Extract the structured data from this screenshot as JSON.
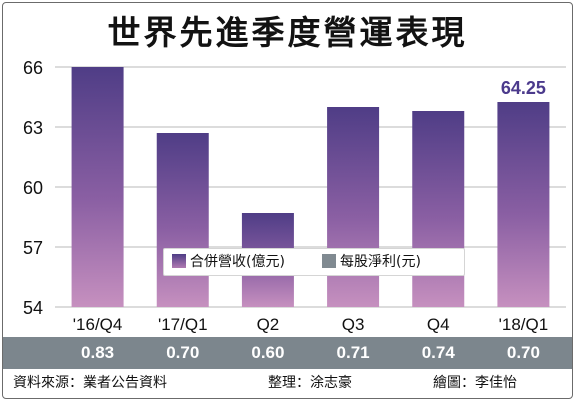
{
  "chart_data": {
    "type": "bar",
    "title": "世界先進季度營運表現",
    "categories": [
      "'16/Q4",
      "'17/Q1",
      "Q2",
      "Q3",
      "Q4",
      "'18/Q1"
    ],
    "series": [
      {
        "name": "合併營收(億元)",
        "values": [
          66.0,
          62.7,
          58.7,
          64.0,
          63.8,
          64.25
        ]
      },
      {
        "name": "每股淨利(元)",
        "values": [
          0.83,
          0.7,
          0.6,
          0.71,
          0.74,
          0.7
        ]
      }
    ],
    "yticks": [
      "54",
      "57",
      "60",
      "63",
      "66"
    ],
    "ylim": [
      54,
      66
    ],
    "annotation": "64.25",
    "eps_labels": [
      "0.83",
      "0.70",
      "0.60",
      "0.71",
      "0.74",
      "0.70"
    ],
    "colors": {
      "bar_top": "#4f3d86",
      "bar_bottom": "#c690bf",
      "eps_band": "#7c868d",
      "annotation": "#4b3a8c"
    },
    "legend_position": "bottom-center"
  },
  "footer": {
    "source": "資料來源：業者公告資料",
    "editor": "整理：涂志豪",
    "illustrator": "繪圖：李佳怡"
  }
}
